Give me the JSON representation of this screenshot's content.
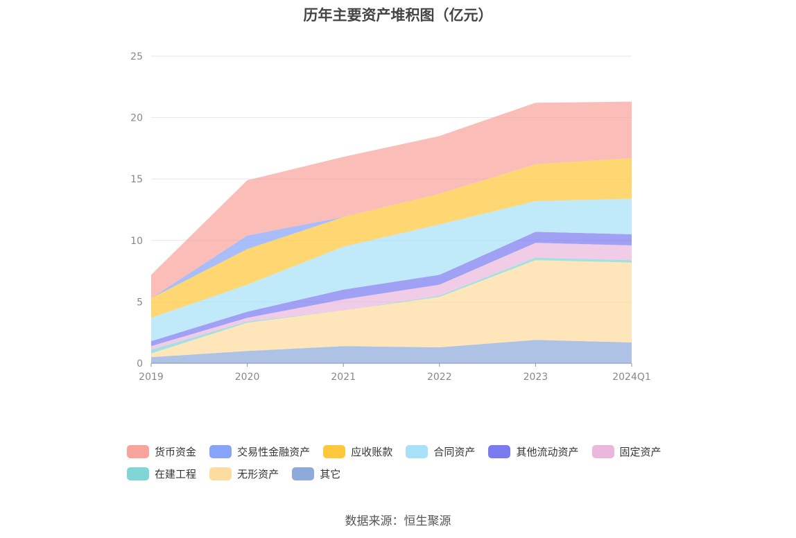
{
  "chart_data": {
    "type": "area",
    "stacked": true,
    "title": "历年主要资产堆积图（亿元）",
    "x": [
      "2019",
      "2020",
      "2021",
      "2022",
      "2023",
      "2024Q1"
    ],
    "ylim": [
      0,
      25
    ],
    "yticks": [
      "0",
      "5",
      "10",
      "15",
      "20",
      "25"
    ],
    "grid": true,
    "legend_position": "bottom",
    "series": [
      {
        "name": "其它",
        "color": "#8eaadb",
        "values": [
          0.5,
          1.0,
          1.4,
          1.3,
          1.9,
          1.7
        ]
      },
      {
        "name": "无形资产",
        "color": "#fddca0",
        "values": [
          0.3,
          2.3,
          2.9,
          4.1,
          6.5,
          6.5
        ]
      },
      {
        "name": "在建工程",
        "color": "#80d6d6",
        "values": [
          0.3,
          0.1,
          0.0,
          0.1,
          0.2,
          0.2
        ]
      },
      {
        "name": "固定资产",
        "color": "#eab8dc",
        "values": [
          0.3,
          0.3,
          0.9,
          0.9,
          1.2,
          1.2
        ]
      },
      {
        "name": "其他流动资产",
        "color": "#7b7bf0",
        "values": [
          0.4,
          0.5,
          0.8,
          0.8,
          0.9,
          0.9
        ]
      },
      {
        "name": "合同资产",
        "color": "#a8e0f8",
        "values": [
          1.9,
          2.2,
          3.5,
          4.1,
          2.5,
          2.9
        ]
      },
      {
        "name": "应收账款",
        "color": "#ffc83c",
        "values": [
          1.6,
          2.9,
          2.4,
          2.5,
          3.0,
          3.3
        ]
      },
      {
        "name": "交易性金融资产",
        "color": "#88a4f8",
        "values": [
          0.0,
          1.1,
          0.0,
          0.0,
          0.0,
          0.0
        ]
      },
      {
        "name": "货币资金",
        "color": "#f8a49c",
        "values": [
          1.9,
          4.5,
          4.9,
          4.7,
          5.0,
          4.6
        ]
      }
    ]
  },
  "legend": {
    "items": [
      {
        "label": "货币资金",
        "color": "#f8a49c"
      },
      {
        "label": "交易性金融资产",
        "color": "#88a4f8"
      },
      {
        "label": "应收账款",
        "color": "#ffc83c"
      },
      {
        "label": "合同资产",
        "color": "#a8e0f8"
      },
      {
        "label": "其他流动资产",
        "color": "#7b7bf0"
      },
      {
        "label": "固定资产",
        "color": "#eab8dc"
      },
      {
        "label": "在建工程",
        "color": "#80d6d6"
      },
      {
        "label": "无形资产",
        "color": "#fddca0"
      },
      {
        "label": "其它",
        "color": "#8eaadb"
      }
    ]
  },
  "source": "数据来源：恒生聚源"
}
